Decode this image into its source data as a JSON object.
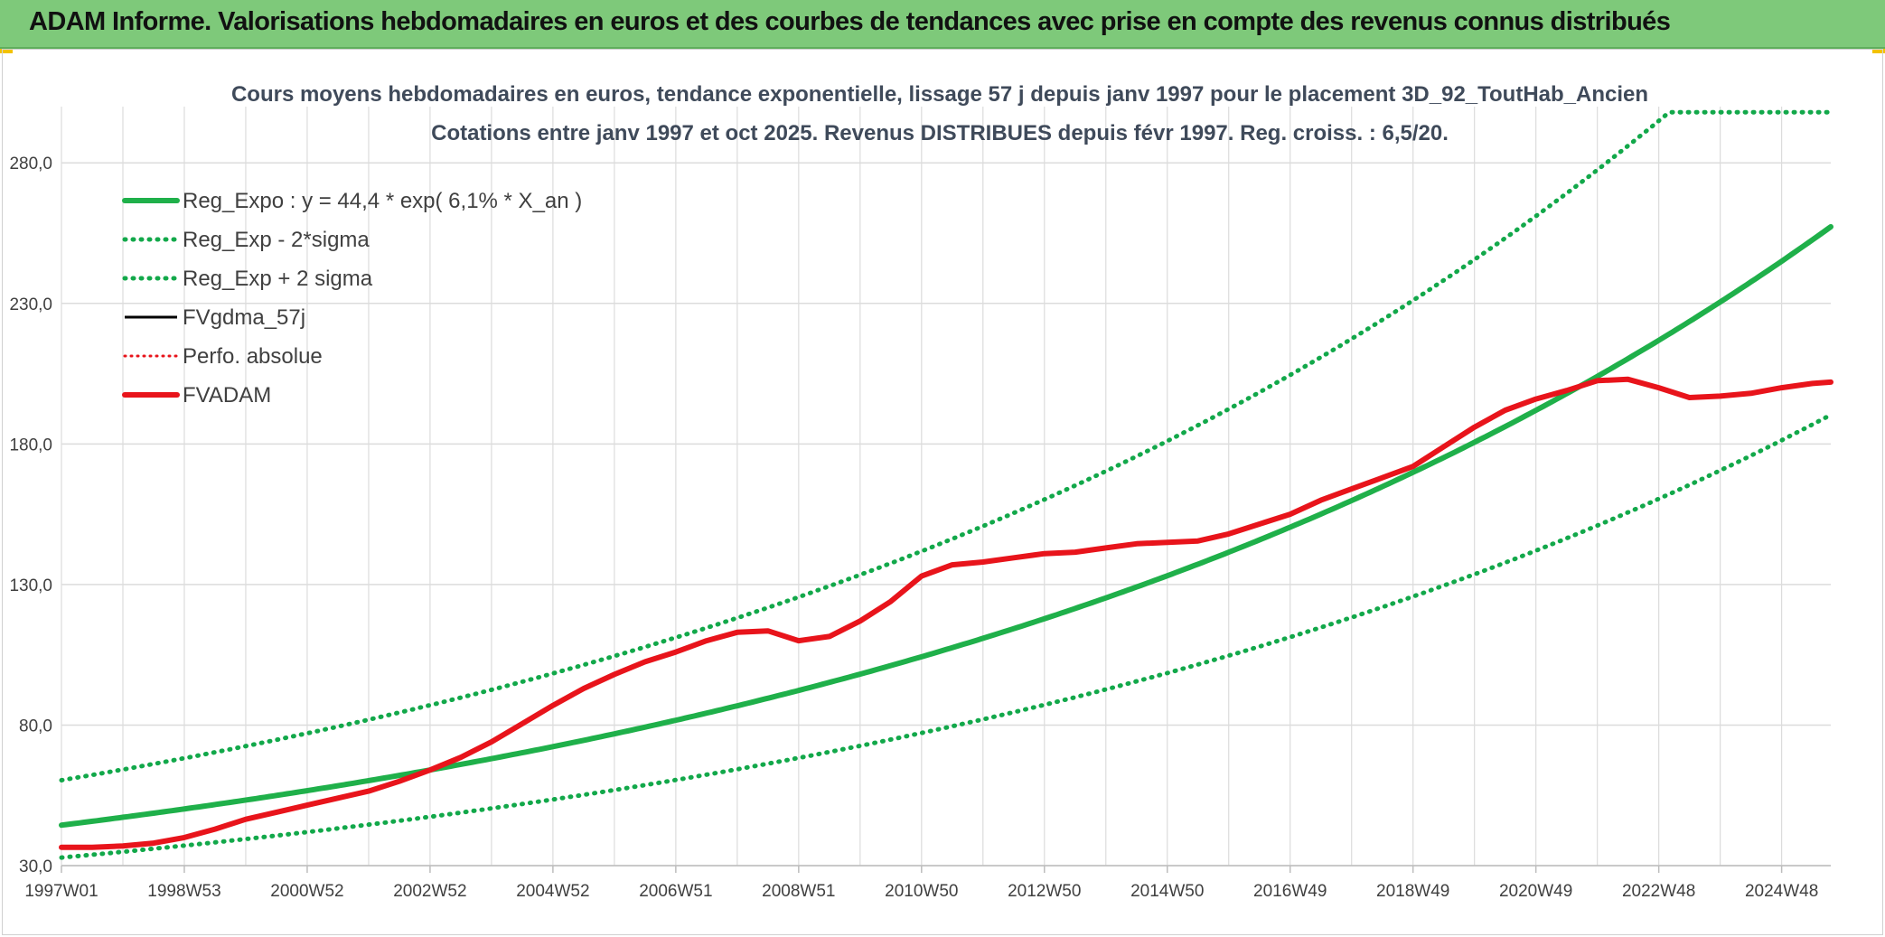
{
  "banner": {
    "title": "ADAM Informe. Valorisations hebdomadaires en euros et des courbes de tendances avec prise en compte des revenus connus distribués"
  },
  "colors": {
    "banner_bg": "#7ec97a",
    "trend_green": "#1fb04a",
    "dotted_green": "#12a84a",
    "fvadam_red": "#e8141b",
    "perf_red": "#e8141b",
    "fvgdma_black": "#000000",
    "grid": "#dcdcdc",
    "title_text": "#3f4a5a"
  },
  "chart_data": {
    "type": "line",
    "title": "Cours moyens hebdomadaires en euros, tendance exponentielle, lissage 57 j depuis janv 1997 pour le placement 3D_92_ToutHab_Ancien",
    "subtitle": "Cotations entre janv 1997 et oct 2025. Revenus DISTRIBUES depuis févr 1997. Reg. croiss. : 6,5/20.",
    "xlabel": "",
    "ylabel": "",
    "x_range_years": [
      1997.0,
      2025.8
    ],
    "ylim": [
      30,
      300
    ],
    "y_ticks": [
      30,
      80,
      130,
      180,
      230,
      280
    ],
    "y_tick_labels": [
      "30,0",
      "80,0",
      "130,0",
      "180,0",
      "230,0",
      "280,0"
    ],
    "x_tick_labels": [
      "1997W01",
      "1998W53",
      "2000W52",
      "2002W52",
      "2004W52",
      "2006W51",
      "2008W51",
      "2010W50",
      "2012W50",
      "2014W50",
      "2016W49",
      "2018W49",
      "2020W49",
      "2022W48",
      "2024W48"
    ],
    "x_tick_years": [
      1997.0,
      1999.0,
      2001.0,
      2003.0,
      2005.0,
      2007.0,
      2009.0,
      2011.0,
      2013.0,
      2015.0,
      2017.0,
      2019.0,
      2021.0,
      2023.0,
      2025.0
    ],
    "grid": true,
    "legend_position": "top-left",
    "regression": {
      "a": 44.4,
      "rate_pct": 6.1
    },
    "series": [
      {
        "name": "Reg_Expo : y = 44,4 * exp( 6,1% *  X_an )",
        "style": "solid-thick",
        "color": "#1fb04a",
        "kind": "expo",
        "factor": 1.0
      },
      {
        "name": "Reg_Exp - 2*sigma",
        "style": "dotted",
        "color": "#12a84a",
        "kind": "expo",
        "factor": 0.74
      },
      {
        "name": "Reg_Exp + 2 sigma",
        "style": "dotted",
        "color": "#12a84a",
        "kind": "expo",
        "factor": 1.36,
        "cap": 298
      },
      {
        "name": "FVgdma_57j",
        "style": "solid-thin",
        "color": "#000000",
        "kind": "none"
      },
      {
        "name": "Perfo. absolue",
        "style": "dotted-thin",
        "color": "#e8141b",
        "kind": "none"
      },
      {
        "name": "FVADAM",
        "style": "solid-thick",
        "color": "#e8141b",
        "kind": "points",
        "x": [
          1997.0,
          1997.5,
          1998.0,
          1998.5,
          1999.0,
          1999.5,
          2000.0,
          2000.5,
          2001.0,
          2001.5,
          2002.0,
          2002.5,
          2003.0,
          2003.5,
          2004.0,
          2004.5,
          2005.0,
          2005.5,
          2006.0,
          2006.5,
          2007.0,
          2007.5,
          2008.0,
          2008.5,
          2009.0,
          2009.5,
          2010.0,
          2010.5,
          2011.0,
          2011.5,
          2012.0,
          2012.5,
          2013.0,
          2013.5,
          2014.0,
          2014.5,
          2015.0,
          2015.5,
          2016.0,
          2016.5,
          2017.0,
          2017.5,
          2018.0,
          2018.5,
          2019.0,
          2019.5,
          2020.0,
          2020.5,
          2021.0,
          2021.5,
          2022.0,
          2022.5,
          2023.0,
          2023.5,
          2024.0,
          2024.5,
          2025.0,
          2025.5,
          2025.8
        ],
        "y": [
          36.5,
          36.5,
          37.0,
          38.0,
          40.0,
          43.0,
          46.5,
          49.0,
          51.5,
          54.0,
          56.5,
          60.0,
          64.0,
          68.5,
          74.0,
          80.5,
          87.0,
          93.0,
          98.0,
          102.5,
          106.0,
          110.0,
          113.0,
          113.5,
          110.0,
          111.5,
          117.0,
          124.0,
          133.0,
          137.0,
          138.0,
          139.5,
          141.0,
          141.5,
          143.0,
          144.5,
          145.0,
          145.5,
          148.0,
          151.5,
          155.0,
          160.0,
          164.0,
          168.0,
          172.0,
          179.0,
          186.0,
          192.0,
          196.0,
          199.0,
          202.5,
          203.0,
          200.0,
          196.5,
          197.0,
          198.0,
          200.0,
          201.5,
          202.0
        ]
      }
    ]
  }
}
